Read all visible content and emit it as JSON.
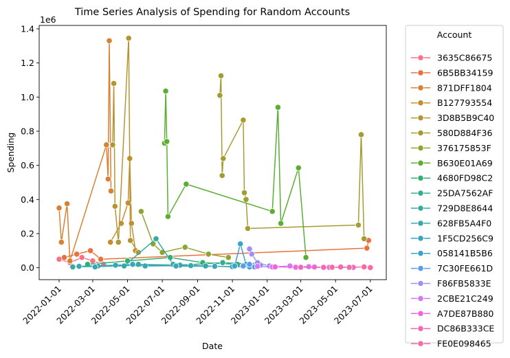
{
  "chart_data": {
    "type": "line",
    "title": "Time Series Analysis of Spending for Random Accounts",
    "xlabel": "Date",
    "ylabel": "Spending",
    "y_offset_label": "1e6",
    "y_scale": 1000000,
    "xlim": [
      "2021-11-27",
      "2023-07-29"
    ],
    "ylim": [
      -70000,
      1420000
    ],
    "x_ticks": [
      "2022-01-01",
      "2022-03-01",
      "2022-05-01",
      "2022-07-01",
      "2022-09-01",
      "2022-11-01",
      "2023-01-01",
      "2023-03-01",
      "2023-05-01",
      "2023-07-01"
    ],
    "y_ticks": [
      0.0,
      0.2,
      0.4,
      0.6,
      0.8,
      1.0,
      1.2,
      1.4
    ],
    "grid": false,
    "legend": {
      "title": "Account",
      "placement": "outside-right"
    },
    "series": [
      {
        "name": "3635C86675",
        "color": "#f77189",
        "points": [
          [
            "2022-01-01",
            50000
          ],
          [
            "2022-01-20",
            30000
          ],
          [
            "2022-02-10",
            60000
          ],
          [
            "2022-03-01",
            40000
          ],
          [
            "2022-03-20",
            20000
          ]
        ]
      },
      {
        "name": "6B5BB34159",
        "color": "#e9723c",
        "points": [
          [
            "2022-01-10",
            60000
          ],
          [
            "2022-02-01",
            80000
          ],
          [
            "2022-02-25",
            100000
          ],
          [
            "2022-03-15",
            50000
          ],
          [
            "2023-06-25",
            115000
          ],
          [
            "2023-06-28",
            160000
          ]
        ]
      },
      {
        "name": "871DFF1804",
        "color": "#d88033",
        "points": [
          [
            "2022-01-01",
            350000
          ],
          [
            "2022-01-05",
            150000
          ],
          [
            "2022-01-15",
            375000
          ],
          [
            "2022-01-20",
            40000
          ],
          [
            "2022-03-25",
            720000
          ],
          [
            "2022-03-28",
            520000
          ],
          [
            "2022-03-30",
            1330000
          ],
          [
            "2022-04-02",
            450000
          ]
        ]
      },
      {
        "name": "B127793554",
        "color": "#c48d31",
        "points": [
          [
            "2022-04-01",
            150000
          ],
          [
            "2022-04-20",
            260000
          ],
          [
            "2022-05-02",
            380000
          ],
          [
            "2022-05-05",
            640000
          ],
          [
            "2022-05-08",
            260000
          ],
          [
            "2022-05-15",
            100000
          ]
        ]
      },
      {
        "name": "3D8B5B9C40",
        "color": "#b39632",
        "points": [
          [
            "2022-04-05",
            720000
          ],
          [
            "2022-04-07",
            1080000
          ],
          [
            "2022-04-09",
            360000
          ],
          [
            "2022-04-15",
            150000
          ],
          [
            "2022-05-03",
            1345000
          ],
          [
            "2022-05-06",
            160000
          ],
          [
            "2022-05-20",
            90000
          ]
        ]
      },
      {
        "name": "580D884F36",
        "color": "#a59c31",
        "points": [
          [
            "2022-10-10",
            1010000
          ],
          [
            "2022-10-12",
            1125000
          ],
          [
            "2022-10-14",
            540000
          ],
          [
            "2022-10-16",
            640000
          ],
          [
            "2022-11-20",
            865000
          ],
          [
            "2022-11-22",
            440000
          ],
          [
            "2022-11-25",
            400000
          ],
          [
            "2022-11-28",
            230000
          ],
          [
            "2023-06-10",
            250000
          ],
          [
            "2023-06-15",
            780000
          ],
          [
            "2023-06-20",
            170000
          ]
        ]
      },
      {
        "name": "376175853F",
        "color": "#8fa331",
        "points": [
          [
            "2022-05-25",
            330000
          ],
          [
            "2022-06-15",
            140000
          ],
          [
            "2022-07-01",
            90000
          ],
          [
            "2022-08-10",
            120000
          ],
          [
            "2022-09-20",
            80000
          ],
          [
            "2022-10-25",
            60000
          ]
        ]
      },
      {
        "name": "B630E01A69",
        "color": "#5aae32",
        "points": [
          [
            "2022-07-05",
            730000
          ],
          [
            "2022-07-07",
            1035000
          ],
          [
            "2022-07-09",
            740000
          ],
          [
            "2022-07-11",
            300000
          ],
          [
            "2022-08-12",
            490000
          ],
          [
            "2023-01-10",
            330000
          ],
          [
            "2023-01-20",
            940000
          ],
          [
            "2023-01-25",
            260000
          ],
          [
            "2023-02-25",
            585000
          ],
          [
            "2023-03-10",
            60000
          ]
        ]
      },
      {
        "name": "4680FD98C2",
        "color": "#33b06f",
        "points": [
          [
            "2022-02-20",
            20000
          ],
          [
            "2022-05-01",
            40000
          ],
          [
            "2022-07-15",
            60000
          ],
          [
            "2022-09-10",
            30000
          ],
          [
            "2022-11-10",
            20000
          ]
        ]
      },
      {
        "name": "25DA7562AF",
        "color": "#35ad8e",
        "points": [
          [
            "2022-03-10",
            10000
          ],
          [
            "2022-05-20",
            20000
          ],
          [
            "2022-08-01",
            15000
          ],
          [
            "2022-10-15",
            30000
          ],
          [
            "2022-12-20",
            20000
          ]
        ]
      },
      {
        "name": "729D8E8644",
        "color": "#36aa9f",
        "points": [
          [
            "2022-01-25",
            5000
          ],
          [
            "2022-04-25",
            10000
          ],
          [
            "2022-06-20",
            170000
          ],
          [
            "2022-07-20",
            20000
          ],
          [
            "2022-09-15",
            10000
          ]
        ]
      },
      {
        "name": "628FB5A4F0",
        "color": "#37a8ae",
        "points": [
          [
            "2022-02-05",
            8000
          ],
          [
            "2022-04-10",
            15000
          ],
          [
            "2022-06-01",
            10000
          ],
          [
            "2022-08-20",
            12000
          ],
          [
            "2022-11-01",
            6000
          ]
        ]
      },
      {
        "name": "1F5CD256C9",
        "color": "#38a5bc",
        "points": [
          [
            "2022-03-05",
            5000
          ],
          [
            "2022-05-10",
            20000
          ],
          [
            "2022-07-25",
            10000
          ],
          [
            "2022-10-01",
            8000
          ],
          [
            "2022-12-01",
            5000
          ]
        ]
      },
      {
        "name": "058141B5B6",
        "color": "#3aa2ce",
        "points": [
          [
            "2022-11-05",
            10000
          ],
          [
            "2022-11-15",
            140000
          ],
          [
            "2022-11-25",
            20000
          ],
          [
            "2022-12-10",
            15000
          ]
        ]
      },
      {
        "name": "7C30FE661D",
        "color": "#5d9bf1",
        "points": [
          [
            "2022-11-20",
            10000
          ],
          [
            "2022-12-01",
            20000
          ],
          [
            "2022-12-10",
            5000
          ],
          [
            "2022-12-20",
            15000
          ]
        ]
      },
      {
        "name": "F86FB5833E",
        "color": "#a08ef4",
        "points": [
          [
            "2022-12-01",
            110000
          ],
          [
            "2022-12-05",
            80000
          ],
          [
            "2022-12-15",
            30000
          ],
          [
            "2023-01-05",
            10000
          ]
        ]
      },
      {
        "name": "2CBE21C249",
        "color": "#d278f4",
        "points": [
          [
            "2022-12-15",
            8000
          ],
          [
            "2023-01-10",
            5000
          ],
          [
            "2023-02-10",
            10000
          ],
          [
            "2023-03-15",
            6000
          ]
        ]
      },
      {
        "name": "A7DE87B880",
        "color": "#f164de",
        "points": [
          [
            "2023-01-15",
            5000
          ],
          [
            "2023-02-20",
            3000
          ],
          [
            "2023-03-25",
            4000
          ],
          [
            "2023-04-20",
            2000
          ]
        ]
      },
      {
        "name": "DC86B333CE",
        "color": "#f565bb",
        "points": [
          [
            "2023-03-01",
            3000
          ],
          [
            "2023-04-10",
            2000
          ],
          [
            "2023-05-10",
            4000
          ],
          [
            "2023-06-01",
            2000
          ]
        ]
      },
      {
        "name": "FE0E098465",
        "color": "#f66ba2",
        "points": [
          [
            "2023-04-25",
            3000
          ],
          [
            "2023-05-25",
            2000
          ],
          [
            "2023-06-20",
            5000
          ],
          [
            "2023-07-01",
            1000
          ]
        ]
      }
    ]
  }
}
